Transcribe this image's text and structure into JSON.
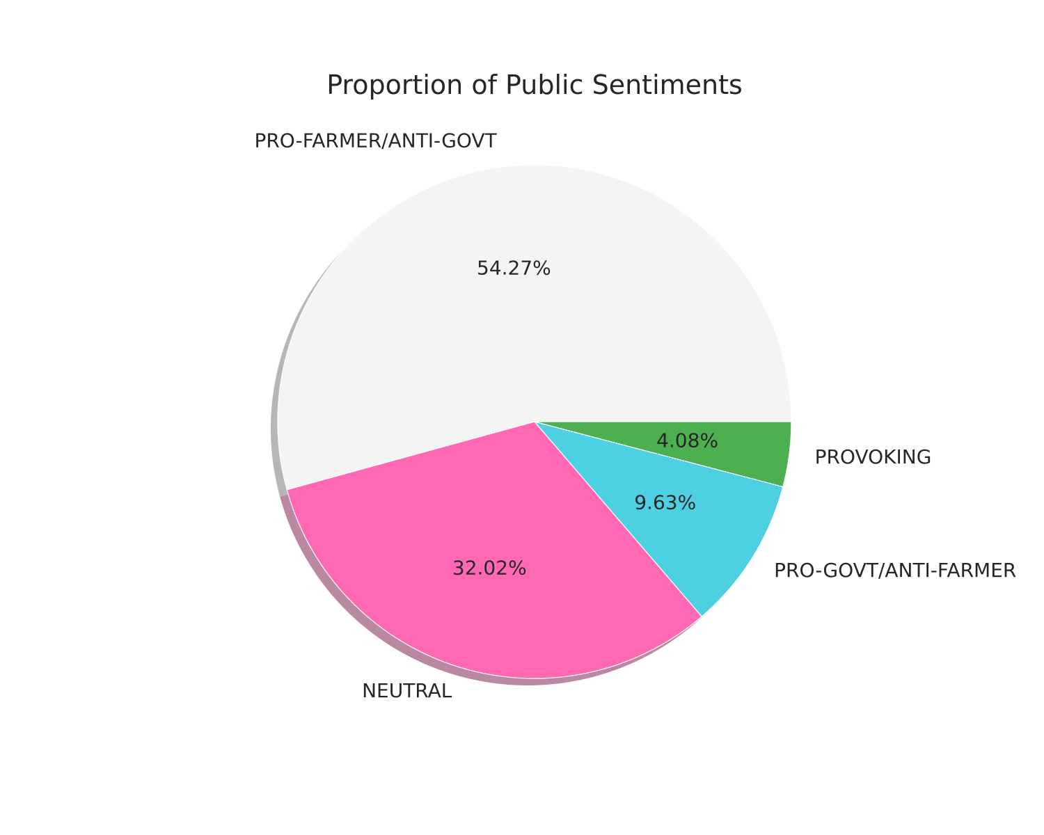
{
  "chart_data": {
    "type": "pie",
    "title": "Proportion of Public Sentiments",
    "shadow": true,
    "start_angle_deg": 0,
    "direction": "counterclockwise",
    "slices": [
      {
        "label": "PRO-FARMER/ANTI-GOVT",
        "value": 54.27,
        "pct_label": "54.27%",
        "color": "#f4f4f4"
      },
      {
        "label": "NEUTRAL",
        "value": 32.02,
        "pct_label": "32.02%",
        "color": "#ff69b4"
      },
      {
        "label": "PRO-GOVT/ANTI-FARMER",
        "value": 9.63,
        "pct_label": "9.63%",
        "color": "#4dd0e1"
      },
      {
        "label": "PROVOKING",
        "value": 4.08,
        "pct_label": "4.08%",
        "color": "#4caf50"
      }
    ]
  }
}
